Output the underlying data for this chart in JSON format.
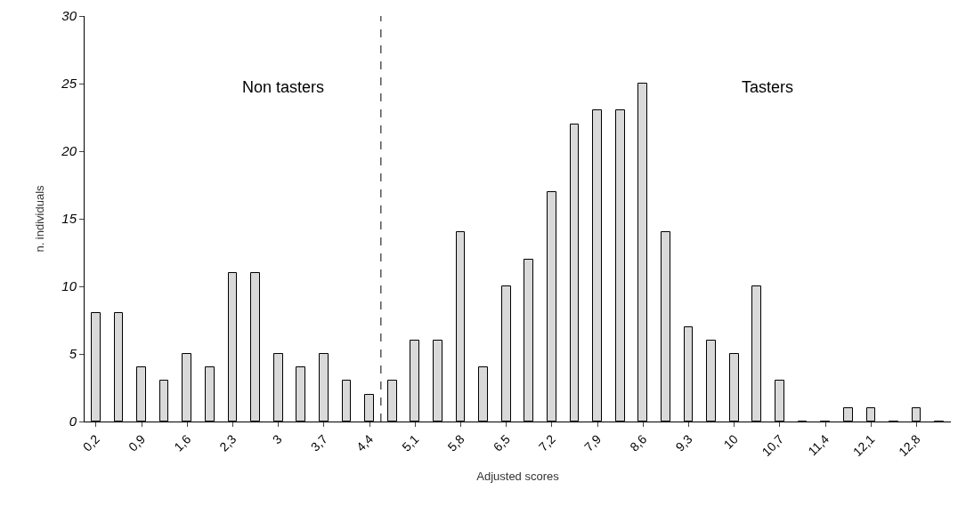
{
  "chart_data": {
    "type": "bar",
    "xlabel": "Adjusted scores",
    "ylabel": "n. individuals",
    "x": [
      0.2,
      0.55,
      0.9,
      1.25,
      1.6,
      1.95,
      2.3,
      2.65,
      3.0,
      3.35,
      3.7,
      4.05,
      4.4,
      4.75,
      5.1,
      5.45,
      5.8,
      6.15,
      6.5,
      6.85,
      7.2,
      7.55,
      7.9,
      8.25,
      8.6,
      8.95,
      9.3,
      9.65,
      10.0,
      10.35,
      10.7,
      11.05,
      11.4,
      11.75,
      12.1,
      12.45,
      12.8,
      13.15
    ],
    "values": [
      8,
      8,
      4,
      3,
      5,
      4,
      11,
      11,
      5,
      4,
      5,
      3,
      2,
      3,
      6,
      6,
      14,
      4,
      10,
      12,
      17,
      22,
      23,
      23,
      25,
      14,
      7,
      6,
      5,
      10,
      3,
      0,
      0,
      1,
      1,
      0,
      1,
      0
    ],
    "color": "#d9d9d9",
    "xlim": [
      0.025,
      13.325
    ],
    "xticks": [
      {
        "value": 0.2,
        "label": "0,2"
      },
      {
        "value": 0.9,
        "label": "0,9"
      },
      {
        "value": 1.6,
        "label": "1,6"
      },
      {
        "value": 2.3,
        "label": "2,3"
      },
      {
        "value": 3.0,
        "label": "3"
      },
      {
        "value": 3.7,
        "label": "3,7"
      },
      {
        "value": 4.4,
        "label": "4,4"
      },
      {
        "value": 5.1,
        "label": "5,1"
      },
      {
        "value": 5.8,
        "label": "5,8"
      },
      {
        "value": 6.5,
        "label": "6,5"
      },
      {
        "value": 7.2,
        "label": "7,2"
      },
      {
        "value": 7.9,
        "label": "7,9"
      },
      {
        "value": 8.6,
        "label": "8,6"
      },
      {
        "value": 9.3,
        "label": "9,3"
      },
      {
        "value": 10,
        "label": "10"
      },
      {
        "value": 10.7,
        "label": "10,7"
      },
      {
        "value": 11.4,
        "label": "11,4"
      },
      {
        "value": 12.1,
        "label": "12,1"
      },
      {
        "value": 12.8,
        "label": "12,8"
      }
    ],
    "ylim": [
      0,
      30
    ],
    "yticks": [
      0,
      5,
      10,
      15,
      20,
      25,
      30
    ],
    "ref_lines": [
      {
        "axis": "x",
        "value": 4.575,
        "line_style": "dashed",
        "color": "#000000"
      }
    ],
    "annotations": [
      "Non tasters",
      "Tasters"
    ]
  }
}
